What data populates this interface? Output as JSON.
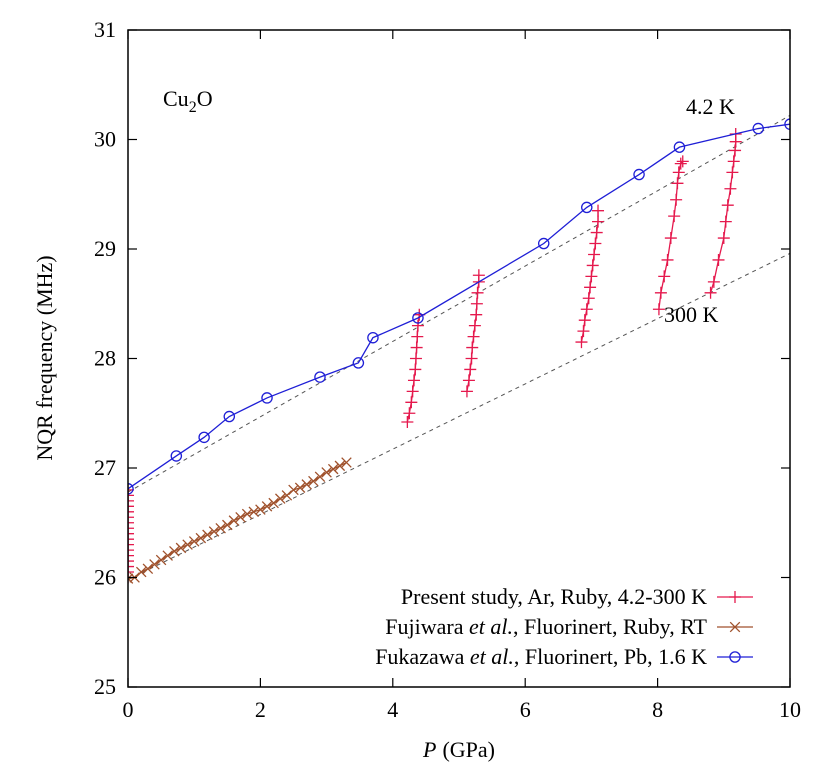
{
  "chart_data": {
    "type": "line",
    "xlabel_var": "P",
    "xlabel_unit": "(GPa)",
    "ylabel": "NQR frequency (MHz)",
    "xlim": [
      0,
      10
    ],
    "ylim": [
      25,
      31
    ],
    "xticks": [
      0,
      2,
      4,
      6,
      8,
      10
    ],
    "yticks": [
      25,
      26,
      27,
      28,
      29,
      30,
      31
    ],
    "grid": false,
    "legend_position": "bottom-right",
    "annotations": {
      "compound_main": "Cu",
      "compound_sub": "2",
      "compound_end": "O",
      "low_temp": "4.2 K",
      "room_temp": "300 K"
    },
    "legend": [
      {
        "parts": [
          {
            "t": "Present study, Ar, Ruby, 4.2-300 K",
            "i": false
          }
        ]
      },
      {
        "parts": [
          {
            "t": "Fujiwara ",
            "i": false
          },
          {
            "t": "et al.",
            "i": true
          },
          {
            "t": ", Fluorinert, Ruby, RT",
            "i": false
          }
        ]
      },
      {
        "parts": [
          {
            "t": "Fukazawa ",
            "i": false
          },
          {
            "t": "et al.",
            "i": true
          },
          {
            "t": ", Fluorinert, Pb, 1.6 K",
            "i": false
          }
        ]
      }
    ],
    "series": [
      {
        "name": "Present study, Ar, Ruby, 4.2-300 K",
        "marker": "plus",
        "color": "#e5194d",
        "line": true,
        "segments": [
          [
            [
              0,
              26.0
            ],
            [
              0,
              26.05
            ],
            [
              0,
              26.1
            ],
            [
              0,
              26.15
            ],
            [
              0,
              26.2
            ],
            [
              0,
              26.25
            ],
            [
              0,
              26.3
            ],
            [
              0,
              26.35
            ],
            [
              0,
              26.4
            ],
            [
              0,
              26.45
            ],
            [
              0,
              26.5
            ],
            [
              0,
              26.55
            ],
            [
              0,
              26.6
            ],
            [
              0,
              26.65
            ],
            [
              0,
              26.7
            ],
            [
              0,
              26.75
            ],
            [
              0,
              26.8
            ]
          ],
          [
            [
              4.22,
              27.42
            ],
            [
              4.25,
              27.5
            ],
            [
              4.28,
              27.6
            ],
            [
              4.3,
              27.7
            ],
            [
              4.32,
              27.8
            ],
            [
              4.34,
              27.9
            ],
            [
              4.35,
              28.0
            ],
            [
              4.36,
              28.1
            ],
            [
              4.37,
              28.2
            ],
            [
              4.38,
              28.3
            ],
            [
              4.4,
              28.4
            ]
          ],
          [
            [
              5.12,
              27.7
            ],
            [
              5.15,
              27.8
            ],
            [
              5.17,
              27.9
            ],
            [
              5.19,
              28.0
            ],
            [
              5.2,
              28.1
            ],
            [
              5.22,
              28.2
            ],
            [
              5.24,
              28.3
            ],
            [
              5.26,
              28.4
            ],
            [
              5.27,
              28.5
            ],
            [
              5.28,
              28.6
            ],
            [
              5.3,
              28.7
            ],
            [
              5.3,
              28.76
            ]
          ],
          [
            [
              6.85,
              28.15
            ],
            [
              6.88,
              28.25
            ],
            [
              6.9,
              28.35
            ],
            [
              6.93,
              28.45
            ],
            [
              6.96,
              28.55
            ],
            [
              6.98,
              28.65
            ],
            [
              7.0,
              28.75
            ],
            [
              7.02,
              28.85
            ],
            [
              7.04,
              28.95
            ],
            [
              7.06,
              29.05
            ],
            [
              7.08,
              29.15
            ],
            [
              7.1,
              29.25
            ],
            [
              7.1,
              29.35
            ]
          ],
          [
            [
              8.02,
              28.45
            ],
            [
              8.05,
              28.6
            ],
            [
              8.1,
              28.75
            ],
            [
              8.15,
              28.9
            ],
            [
              8.2,
              29.1
            ],
            [
              8.25,
              29.3
            ],
            [
              8.28,
              29.45
            ],
            [
              8.3,
              29.6
            ],
            [
              8.32,
              29.7
            ],
            [
              8.35,
              29.78
            ],
            [
              8.38,
              29.8
            ]
          ],
          [
            [
              8.8,
              28.6
            ],
            [
              8.85,
              28.7
            ],
            [
              8.92,
              28.9
            ],
            [
              9.0,
              29.1
            ],
            [
              9.03,
              29.25
            ],
            [
              9.06,
              29.4
            ],
            [
              9.1,
              29.55
            ],
            [
              9.13,
              29.7
            ],
            [
              9.15,
              29.8
            ],
            [
              9.17,
              29.9
            ],
            [
              9.18,
              29.98
            ],
            [
              9.18,
              30.05
            ]
          ]
        ]
      },
      {
        "name": "Fujiwara et al., Fluorinert, Ruby, RT",
        "marker": "cross",
        "color": "#a0522d",
        "line": true,
        "segments": [
          [
            [
              0.0,
              25.99
            ],
            [
              0.1,
              26.0
            ],
            [
              0.2,
              26.05
            ],
            [
              0.3,
              26.08
            ],
            [
              0.4,
              26.12
            ],
            [
              0.5,
              26.16
            ],
            [
              0.6,
              26.2
            ],
            [
              0.7,
              26.24
            ],
            [
              0.8,
              26.27
            ],
            [
              0.9,
              26.3
            ],
            [
              1.0,
              26.33
            ],
            [
              1.1,
              26.36
            ],
            [
              1.2,
              26.39
            ],
            [
              1.3,
              26.42
            ],
            [
              1.4,
              26.45
            ],
            [
              1.5,
              26.48
            ],
            [
              1.6,
              26.52
            ],
            [
              1.7,
              26.55
            ],
            [
              1.8,
              26.58
            ],
            [
              1.9,
              26.6
            ],
            [
              2.0,
              26.62
            ],
            [
              2.1,
              26.65
            ],
            [
              2.2,
              26.68
            ],
            [
              2.3,
              26.72
            ],
            [
              2.4,
              26.75
            ],
            [
              2.5,
              26.8
            ],
            [
              2.6,
              26.82
            ],
            [
              2.7,
              26.85
            ],
            [
              2.8,
              26.88
            ],
            [
              2.9,
              26.92
            ],
            [
              3.0,
              26.96
            ],
            [
              3.1,
              26.99
            ],
            [
              3.2,
              27.02
            ],
            [
              3.3,
              27.05
            ]
          ]
        ]
      },
      {
        "name": "Fukazawa et al., Fluorinert, Pb, 1.6 K",
        "marker": "circle",
        "color": "#1f1fd6",
        "line": true,
        "segments": [
          [
            [
              0,
              26.81
            ],
            [
              0.73,
              27.11
            ],
            [
              1.15,
              27.28
            ],
            [
              1.53,
              27.47
            ],
            [
              2.1,
              27.64
            ],
            [
              2.9,
              27.83
            ],
            [
              3.48,
              27.96
            ],
            [
              3.7,
              28.19
            ],
            [
              4.38,
              28.37
            ],
            [
              6.28,
              29.05
            ],
            [
              6.93,
              29.38
            ],
            [
              7.72,
              29.68
            ],
            [
              8.33,
              29.93
            ],
            [
              9.52,
              30.1
            ],
            [
              10.0,
              30.14
            ]
          ]
        ]
      }
    ],
    "reference_lines": [
      {
        "name": "4.2 K",
        "from": [
          0,
          26.78
        ],
        "to": [
          10,
          30.22
        ]
      },
      {
        "name": "300 K",
        "from": [
          0,
          25.98
        ],
        "to": [
          10,
          28.96
        ]
      }
    ]
  }
}
